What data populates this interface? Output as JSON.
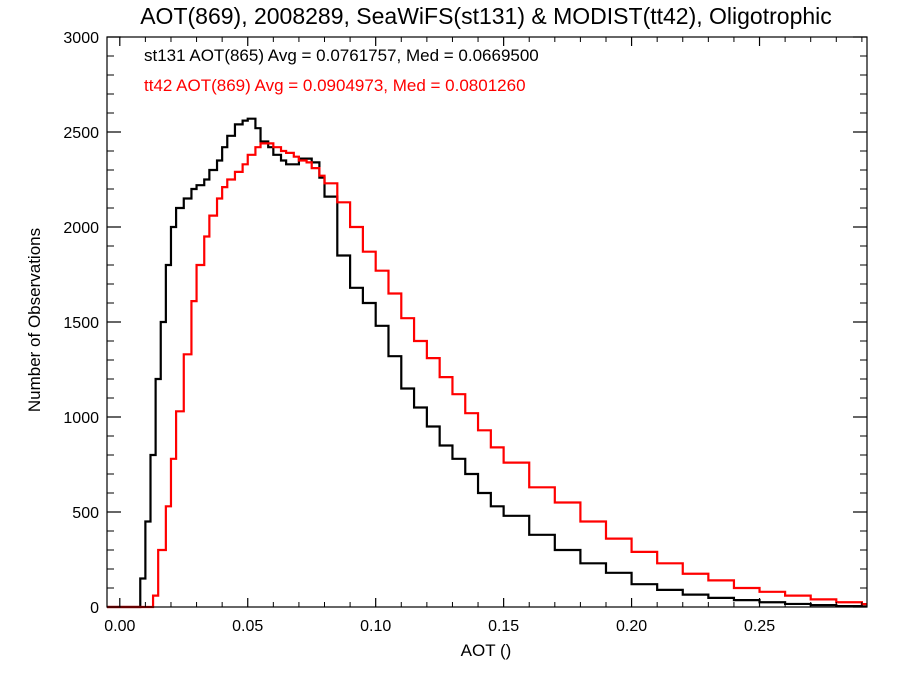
{
  "chart_data": {
    "type": "line",
    "style": "step histogram",
    "title": "AOT(869), 2008289, SeaWiFS(st131) & MODIST(tt42), Oligotrophic",
    "xlabel": "AOT ()",
    "ylabel": "Number of Observations",
    "xlim": [
      -0.005,
      0.292
    ],
    "ylim": [
      0,
      3000
    ],
    "xticks": [
      0.0,
      0.05,
      0.1,
      0.15,
      0.2,
      0.25
    ],
    "xtick_labels": [
      "0.00",
      "0.05",
      "0.10",
      "0.15",
      "0.20",
      "0.25"
    ],
    "yticks": [
      0,
      500,
      1000,
      1500,
      2000,
      2500,
      3000
    ],
    "ytick_labels": [
      "0",
      "500",
      "1000",
      "1500",
      "2000",
      "2500",
      "3000"
    ],
    "grid": false,
    "legend_placement": "top-left, inside plot",
    "series": [
      {
        "name": "st131",
        "annotation": "st131 AOT(865) Avg = 0.0761757, Med = 0.0669500",
        "color": "#000000",
        "x": [
          0.0,
          0.005,
          0.008,
          0.01,
          0.012,
          0.014,
          0.016,
          0.018,
          0.02,
          0.022,
          0.025,
          0.028,
          0.03,
          0.033,
          0.035,
          0.038,
          0.04,
          0.042,
          0.045,
          0.048,
          0.05,
          0.053,
          0.055,
          0.058,
          0.06,
          0.063,
          0.065,
          0.068,
          0.07,
          0.073,
          0.075,
          0.078,
          0.08,
          0.085,
          0.09,
          0.095,
          0.1,
          0.105,
          0.11,
          0.115,
          0.12,
          0.125,
          0.13,
          0.135,
          0.14,
          0.145,
          0.15,
          0.16,
          0.17,
          0.18,
          0.19,
          0.2,
          0.21,
          0.22,
          0.23,
          0.24,
          0.25,
          0.26,
          0.27,
          0.28,
          0.29
        ],
        "y": [
          0,
          0,
          150,
          450,
          800,
          1200,
          1500,
          1800,
          2000,
          2100,
          2150,
          2200,
          2220,
          2250,
          2300,
          2350,
          2420,
          2480,
          2540,
          2560,
          2570,
          2520,
          2450,
          2420,
          2380,
          2350,
          2330,
          2330,
          2360,
          2360,
          2340,
          2260,
          2160,
          1850,
          1680,
          1600,
          1480,
          1320,
          1150,
          1050,
          950,
          850,
          780,
          700,
          600,
          530,
          480,
          380,
          300,
          230,
          180,
          120,
          90,
          65,
          48,
          36,
          25,
          16,
          10,
          5,
          3
        ]
      },
      {
        "name": "tt42",
        "annotation": "tt42 AOT(869) Avg = 0.0904973, Med = 0.0801260",
        "color": "#ff0000",
        "x": [
          0.0,
          0.01,
          0.013,
          0.015,
          0.018,
          0.02,
          0.022,
          0.025,
          0.028,
          0.03,
          0.033,
          0.035,
          0.038,
          0.04,
          0.042,
          0.045,
          0.048,
          0.05,
          0.053,
          0.055,
          0.058,
          0.06,
          0.063,
          0.065,
          0.068,
          0.07,
          0.073,
          0.075,
          0.078,
          0.08,
          0.085,
          0.09,
          0.095,
          0.1,
          0.105,
          0.11,
          0.115,
          0.12,
          0.125,
          0.13,
          0.135,
          0.14,
          0.145,
          0.15,
          0.16,
          0.17,
          0.18,
          0.19,
          0.2,
          0.21,
          0.22,
          0.23,
          0.24,
          0.25,
          0.26,
          0.27,
          0.28,
          0.29
        ],
        "y": [
          0,
          0,
          60,
          300,
          530,
          780,
          1030,
          1330,
          1610,
          1800,
          1950,
          2060,
          2150,
          2210,
          2250,
          2290,
          2330,
          2380,
          2420,
          2440,
          2440,
          2420,
          2400,
          2390,
          2370,
          2350,
          2340,
          2310,
          2270,
          2230,
          2130,
          2000,
          1870,
          1770,
          1650,
          1520,
          1400,
          1310,
          1210,
          1120,
          1020,
          930,
          840,
          760,
          630,
          550,
          450,
          360,
          290,
          230,
          175,
          140,
          100,
          80,
          60,
          40,
          25,
          15
        ]
      }
    ]
  }
}
